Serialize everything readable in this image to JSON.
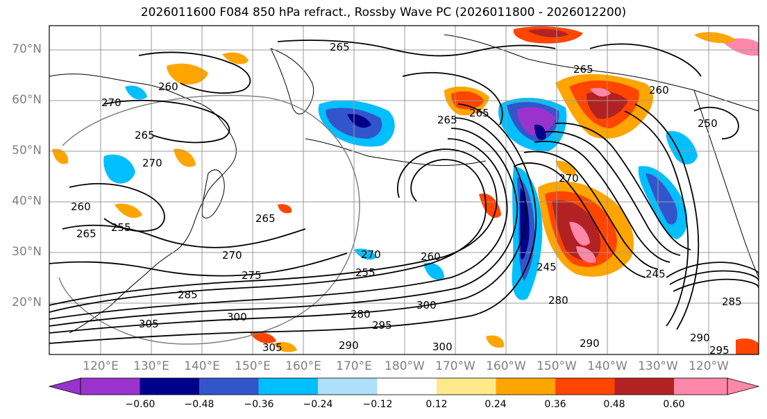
{
  "title": "2026011600 F084 850 hPa refract., Rossby Wave PC (2026011800 - 2026012200)",
  "lat_ticks": [
    "70°N",
    "60°N",
    "50°N",
    "40°N",
    "30°N",
    "20°N"
  ],
  "lon_ticks": [
    "120°E",
    "130°E",
    "140°E",
    "150°E",
    "160°E",
    "170°E",
    "180°W",
    "170°W",
    "160°W",
    "150°W",
    "140°W",
    "130°W",
    "120°W"
  ],
  "contour_labels": [
    "265",
    "265",
    "260",
    "270",
    "265",
    "270",
    "265",
    "250",
    "260",
    "260",
    "255",
    "265",
    "265",
    "270",
    "275",
    "285",
    "305",
    "300",
    "305",
    "270",
    "255",
    "260",
    "280",
    "295",
    "290",
    "290",
    "300",
    "300",
    "245",
    "280",
    "290",
    "285",
    "295",
    "245",
    "270",
    "265"
  ],
  "colorbar": {
    "ticks": [
      "−0.60",
      "−0.48",
      "−0.36",
      "−0.24",
      "−0.12",
      "0.12",
      "0.24",
      "0.36",
      "0.48",
      "0.60"
    ],
    "colors": [
      "#9933cc",
      "#00008b",
      "#3355cc",
      "#00bfff",
      "#aedffb",
      "#ffffff",
      "#ffe98a",
      "#ffa500",
      "#ff4500",
      "#b22222",
      "#ff88aa"
    ]
  },
  "map_colors": {
    "ocean": "#ffffff",
    "grid": "#9a9a9a",
    "coast": "#000000",
    "contour": "#000000",
    "frame": "#000000"
  }
}
